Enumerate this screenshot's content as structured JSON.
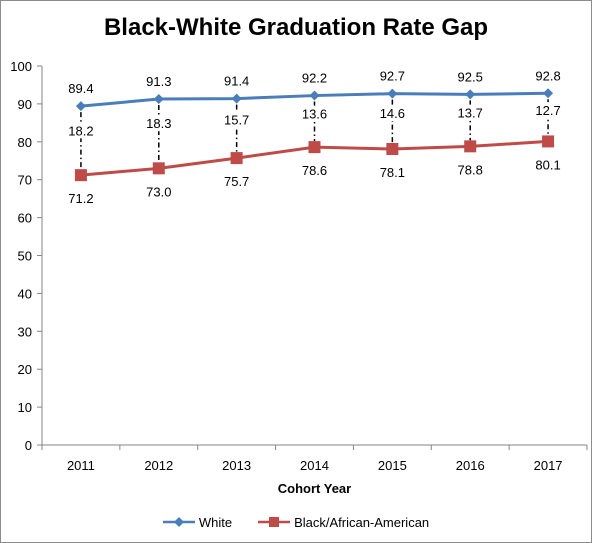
{
  "chart_data": {
    "type": "line",
    "title": "Black-White Graduation Rate Gap",
    "xlabel": "Cohort Year",
    "ylabel": "",
    "ylim": [
      0,
      100
    ],
    "yticks": [
      0,
      10,
      20,
      30,
      40,
      50,
      60,
      70,
      80,
      90,
      100
    ],
    "categories": [
      "2011",
      "2012",
      "2013",
      "2014",
      "2015",
      "2016",
      "2017"
    ],
    "series": [
      {
        "name": "White",
        "color": "#4a7ebb",
        "marker": "diamond",
        "values": [
          89.4,
          91.3,
          91.4,
          92.2,
          92.7,
          92.5,
          92.8
        ],
        "labels": [
          "89.4",
          "91.3",
          "91.4",
          "92.2",
          "92.7",
          "92.5",
          "92.8"
        ]
      },
      {
        "name": "Black/African-American",
        "color": "#be4b48",
        "marker": "square",
        "values": [
          71.2,
          73.0,
          75.7,
          78.6,
          78.1,
          78.8,
          80.1
        ],
        "labels": [
          "71.2",
          "73.0",
          "75.7",
          "78.6",
          "78.1",
          "78.8",
          "80.1"
        ]
      }
    ],
    "gaps": [
      "18.2",
      "18.3",
      "15.7",
      "13.6",
      "14.6",
      "13.7",
      "12.7"
    ],
    "grid": false,
    "legend_position": "bottom"
  }
}
